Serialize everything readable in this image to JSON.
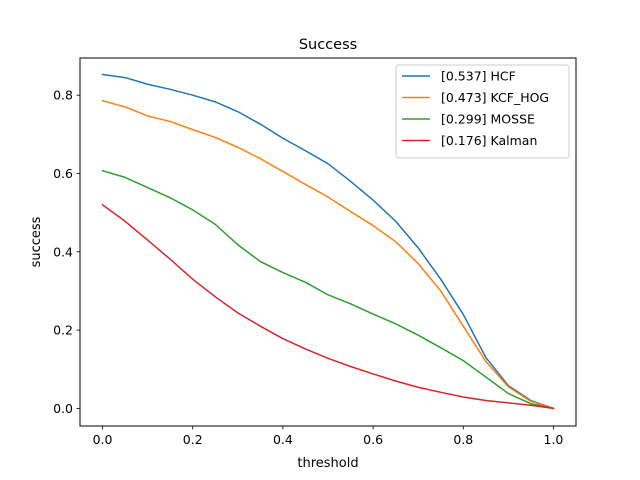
{
  "chart_data": {
    "type": "line",
    "title": "Success",
    "xlabel": "threshold",
    "ylabel": "success",
    "xlim": [
      -0.05,
      1.05
    ],
    "ylim": [
      -0.045,
      0.895
    ],
    "xticks": [
      0.0,
      0.2,
      0.4,
      0.6,
      0.8,
      1.0
    ],
    "xtick_labels": [
      "0.0",
      "0.2",
      "0.4",
      "0.6",
      "0.8",
      "1.0"
    ],
    "yticks": [
      0.0,
      0.2,
      0.4,
      0.6,
      0.8
    ],
    "ytick_labels": [
      "0.0",
      "0.2",
      "0.4",
      "0.6",
      "0.8"
    ],
    "grid": false,
    "legend_position": "top-right",
    "x": [
      0.0,
      0.05,
      0.1,
      0.15,
      0.2,
      0.25,
      0.3,
      0.35,
      0.4,
      0.45,
      0.5,
      0.55,
      0.6,
      0.65,
      0.7,
      0.75,
      0.8,
      0.85,
      0.9,
      0.95,
      1.0
    ],
    "series": [
      {
        "name": "HCF",
        "label": "[0.537] HCF",
        "color": "#1f77b4",
        "values": [
          0.853,
          0.845,
          0.828,
          0.815,
          0.8,
          0.783,
          0.758,
          0.726,
          0.69,
          0.658,
          0.625,
          0.58,
          0.532,
          0.478,
          0.41,
          0.33,
          0.24,
          0.13,
          0.058,
          0.02,
          0.0
        ]
      },
      {
        "name": "KCF_HOG",
        "label": "[0.473] KCF_HOG",
        "color": "#ff7f0e",
        "values": [
          0.786,
          0.77,
          0.747,
          0.733,
          0.712,
          0.692,
          0.667,
          0.638,
          0.605,
          0.572,
          0.54,
          0.503,
          0.467,
          0.426,
          0.37,
          0.3,
          0.21,
          0.12,
          0.055,
          0.018,
          0.0
        ]
      },
      {
        "name": "MOSSE",
        "label": "[0.299] MOSSE",
        "color": "#2ca02c",
        "values": [
          0.607,
          0.59,
          0.564,
          0.538,
          0.507,
          0.47,
          0.418,
          0.375,
          0.347,
          0.322,
          0.29,
          0.267,
          0.241,
          0.216,
          0.187,
          0.155,
          0.122,
          0.08,
          0.038,
          0.012,
          0.0
        ]
      },
      {
        "name": "Kalman",
        "label": "[0.176] Kalman",
        "color": "#d62728",
        "values": [
          0.52,
          0.478,
          0.43,
          0.381,
          0.33,
          0.285,
          0.244,
          0.21,
          0.178,
          0.152,
          0.128,
          0.107,
          0.088,
          0.07,
          0.054,
          0.041,
          0.029,
          0.02,
          0.014,
          0.008,
          0.0
        ]
      }
    ]
  }
}
